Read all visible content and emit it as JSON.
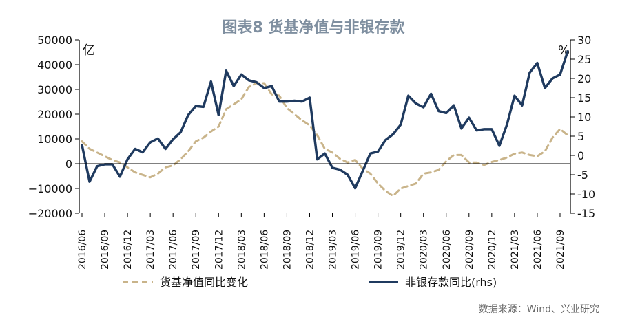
{
  "chart_data": {
    "type": "line",
    "title": "图表8 货基净值与非银存款",
    "left_unit": "亿",
    "right_unit": "%",
    "source": "数据来源：Wind、兴业研究",
    "ylim": [
      -20000,
      50000
    ],
    "y2lim": [
      -15,
      30
    ],
    "yticks": [
      "50000",
      "40000",
      "30000",
      "20000",
      "10000",
      "0",
      "-10000",
      "-20000"
    ],
    "y2ticks": [
      "30",
      "25",
      "20",
      "15",
      "10",
      "5",
      "0",
      "-5",
      "-10",
      "-15"
    ],
    "xtick_labels": [
      "2016/06",
      "2016/09",
      "2016/12",
      "2017/03",
      "2017/06",
      "2017/09",
      "2017/12",
      "2018/03",
      "2018/06",
      "2018/09",
      "2018/12",
      "2019/03",
      "2019/06",
      "2019/09",
      "2019/12",
      "2020/03",
      "2020/06",
      "2020/09",
      "2020/12",
      "2021/03",
      "2021/06",
      "2021/09"
    ],
    "x": [
      "2016/06",
      "2016/07",
      "2016/08",
      "2016/09",
      "2016/10",
      "2016/11",
      "2016/12",
      "2017/01",
      "2017/02",
      "2017/03",
      "2017/04",
      "2017/05",
      "2017/06",
      "2017/07",
      "2017/08",
      "2017/09",
      "2017/10",
      "2017/11",
      "2017/12",
      "2018/01",
      "2018/02",
      "2018/03",
      "2018/04",
      "2018/05",
      "2018/06",
      "2018/07",
      "2018/08",
      "2018/09",
      "2018/10",
      "2018/11",
      "2018/12",
      "2019/01",
      "2019/02",
      "2019/03",
      "2019/04",
      "2019/05",
      "2019/06",
      "2019/07",
      "2019/08",
      "2019/09",
      "2019/10",
      "2019/11",
      "2019/12",
      "2020/01",
      "2020/02",
      "2020/03",
      "2020/04",
      "2020/05",
      "2020/06",
      "2020/07",
      "2020/08",
      "2020/09",
      "2020/10",
      "2020/11",
      "2020/12",
      "2021/01",
      "2021/02",
      "2021/03",
      "2021/04",
      "2021/05",
      "2021/06",
      "2021/07",
      "2021/08",
      "2021/09",
      "2021/10"
    ],
    "series": [
      {
        "name": "货基净值同比变化",
        "axis": "left",
        "color": "#c9b48a",
        "dash": true,
        "values": [
          9000,
          6000,
          4500,
          3000,
          1500,
          500,
          -1500,
          -3500,
          -4500,
          -5500,
          -4000,
          -1500,
          -700,
          1800,
          5000,
          9000,
          10500,
          13000,
          15000,
          22000,
          24000,
          26000,
          31000,
          32500,
          32500,
          28000,
          27500,
          22500,
          20000,
          17500,
          15500,
          11500,
          6000,
          4500,
          2000,
          500,
          1500,
          -2000,
          -4000,
          -8000,
          -11000,
          -13000,
          -10000,
          -9000,
          -8000,
          -4000,
          -3500,
          -2500,
          1000,
          3500,
          3500,
          500,
          500,
          -500,
          700,
          1500,
          2500,
          4000,
          4500,
          3500,
          3000,
          5000,
          10500,
          14000,
          11500
        ]
      },
      {
        "name": "非银存款同比(rhs)",
        "axis": "right",
        "color": "#1f3a5f",
        "dash": false,
        "values": [
          2.7,
          -6.8,
          -2.8,
          -2.3,
          -2.3,
          -5.5,
          -1.0,
          1.7,
          0.8,
          3.4,
          4.4,
          1.7,
          4.2,
          6.0,
          10.5,
          12.8,
          12.6,
          19.2,
          10.5,
          22.0,
          18.0,
          21.0,
          19.5,
          19.0,
          17.5,
          18.0,
          14.0,
          14.0,
          14.2,
          14.0,
          15.0,
          -1.0,
          0.5,
          -3.2,
          -3.7,
          -5.0,
          -8.5,
          -4.0,
          0.5,
          1.0,
          4.0,
          5.5,
          8.0,
          15.5,
          13.5,
          12.5,
          16.0,
          11.5,
          11.0,
          13.0,
          7.0,
          9.8,
          6.5,
          6.8,
          6.8,
          2.5,
          8.0,
          15.5,
          13.0,
          21.5,
          24.0,
          17.5,
          20.0,
          21.0,
          27.0
        ]
      }
    ],
    "legend": {
      "placement": "bottom"
    }
  }
}
